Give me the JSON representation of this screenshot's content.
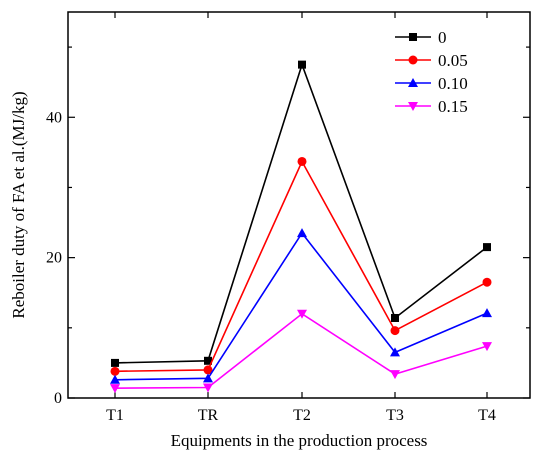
{
  "chart_data": {
    "type": "line",
    "categories": [
      "T1",
      "TR",
      "T2",
      "T3",
      "T4"
    ],
    "series": [
      {
        "name": "0",
        "color": "#000000",
        "marker": "square",
        "values": [
          5.0,
          5.3,
          47.5,
          11.4,
          21.5
        ]
      },
      {
        "name": "0.05",
        "color": "#ff0000",
        "marker": "circle",
        "values": [
          3.8,
          4.0,
          33.7,
          9.6,
          16.5
        ]
      },
      {
        "name": "0.10",
        "color": "#0000ff",
        "marker": "triangle-up",
        "values": [
          2.6,
          2.8,
          23.5,
          6.5,
          12.1
        ]
      },
      {
        "name": "0.15",
        "color": "#ff00ff",
        "marker": "triangle-down",
        "values": [
          1.4,
          1.5,
          12.0,
          3.4,
          7.4
        ]
      }
    ],
    "xlabel": "Equipments in the production process",
    "ylabel": "Reboiler duty of FA et al.(MJ/kg)",
    "ylim": [
      0,
      55
    ],
    "yticks": [
      0,
      20,
      40
    ],
    "grid": false,
    "legend_position": "top-right"
  }
}
